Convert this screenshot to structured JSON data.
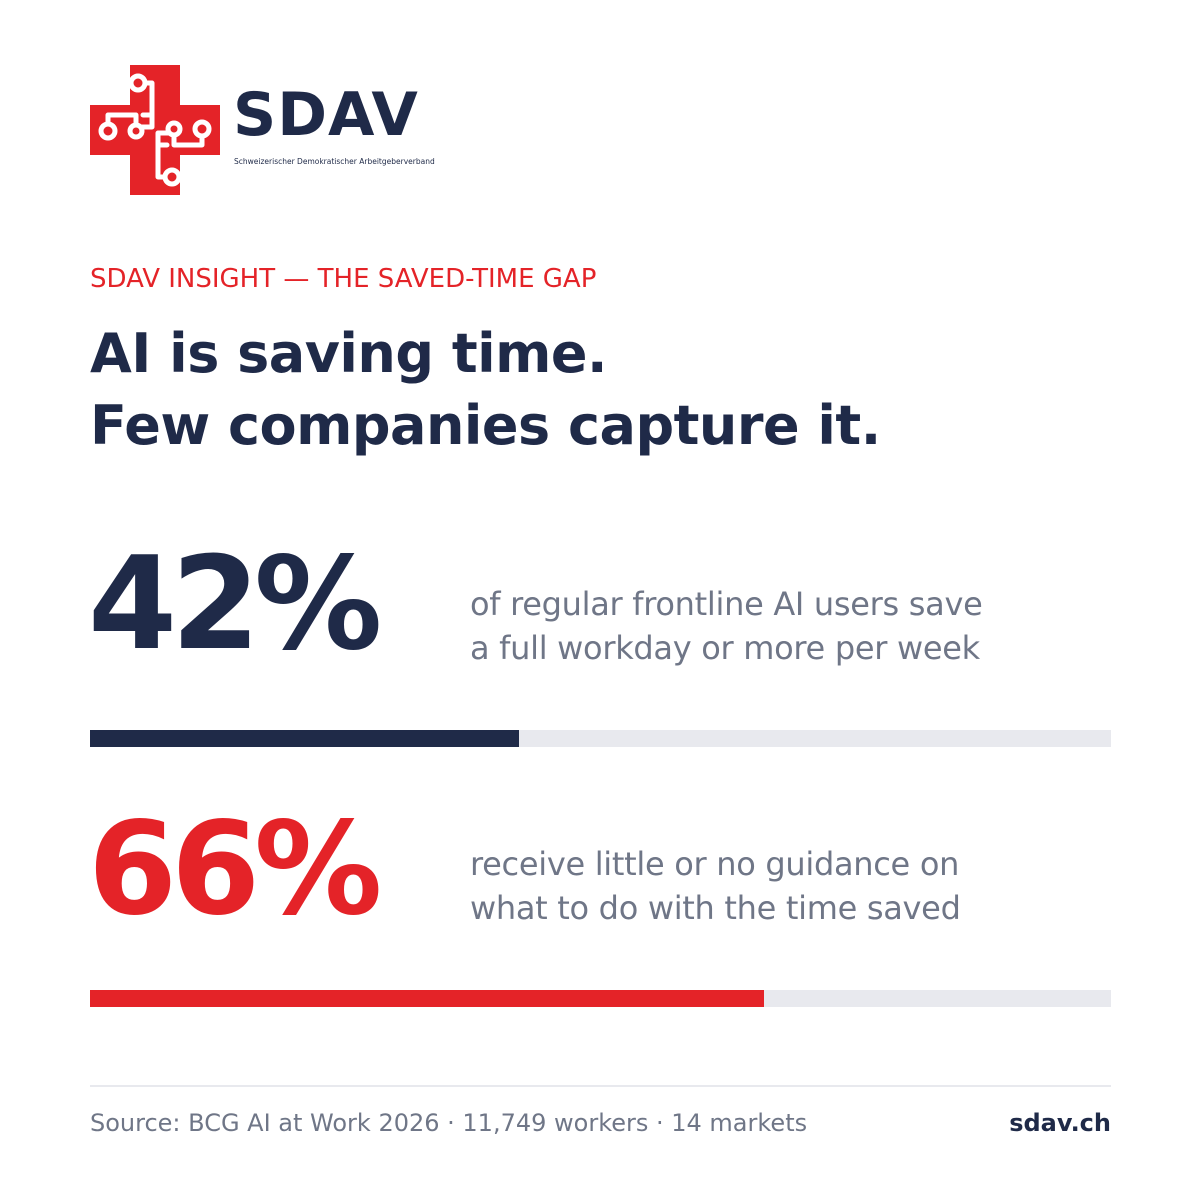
{
  "brand": {
    "name": "SDAV",
    "subtitle": "Schweizerischer Demokratischer Arbeitgeberverband",
    "logo_icon": "swiss-cross-circuit-icon"
  },
  "eyebrow": "SDAV INSIGHT — THE SAVED-TIME GAP",
  "headline": {
    "line1": "AI is saving time.",
    "line2": "Few companies capture it."
  },
  "stats": [
    {
      "number": "42%",
      "value": 42,
      "desc_line1": "of regular frontline AI users save",
      "desc_line2": "a full workday or more per week",
      "color": "#1f2a48"
    },
    {
      "number": "66%",
      "value": 66,
      "desc_line1": "receive little or no guidance on",
      "desc_line2": "what to do with the time saved",
      "color": "#e42328"
    }
  ],
  "footer": {
    "source": "Source: BCG AI at Work 2026 · 11,749 workers · 14 markets",
    "site": "sdav.ch"
  },
  "colors": {
    "navy": "#1f2a48",
    "red": "#e42328",
    "gray_text": "#6f7687",
    "track": "#e8e9ee"
  }
}
